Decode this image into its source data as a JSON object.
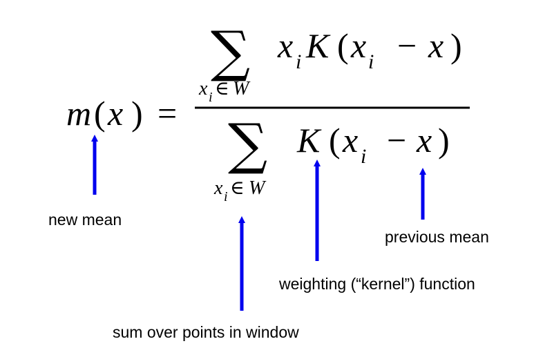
{
  "formula": {
    "lhs": {
      "func": "m",
      "open": "(",
      "var": "x",
      "close": ")",
      "equals": "="
    },
    "numerator": {
      "sum_symbol": "∑",
      "sub_var": "x",
      "sub_index": "i",
      "sub_in": "∈",
      "sub_set": "W",
      "term_x": "x",
      "term_x_index": "i",
      "kernel": "K",
      "open": "(",
      "arg_x": "x",
      "arg_x_index": "i",
      "minus": "−",
      "arg_mean": "x",
      "close": ")"
    },
    "denominator": {
      "sum_symbol": "∑",
      "sub_var": "x",
      "sub_index": "i",
      "sub_in": "∈",
      "sub_set": "W",
      "kernel": "K",
      "open": "(",
      "arg_x": "x",
      "arg_x_index": "i",
      "minus": "−",
      "arg_mean": "x",
      "close": ")"
    }
  },
  "annotations": {
    "new_mean": "new mean",
    "previous_mean": "previous mean",
    "kernel_function": "weighting (“kernel”) function",
    "sum_window": "sum over points in window"
  },
  "colors": {
    "arrow": "#0000ee",
    "text": "#000000",
    "background": "#ffffff"
  }
}
